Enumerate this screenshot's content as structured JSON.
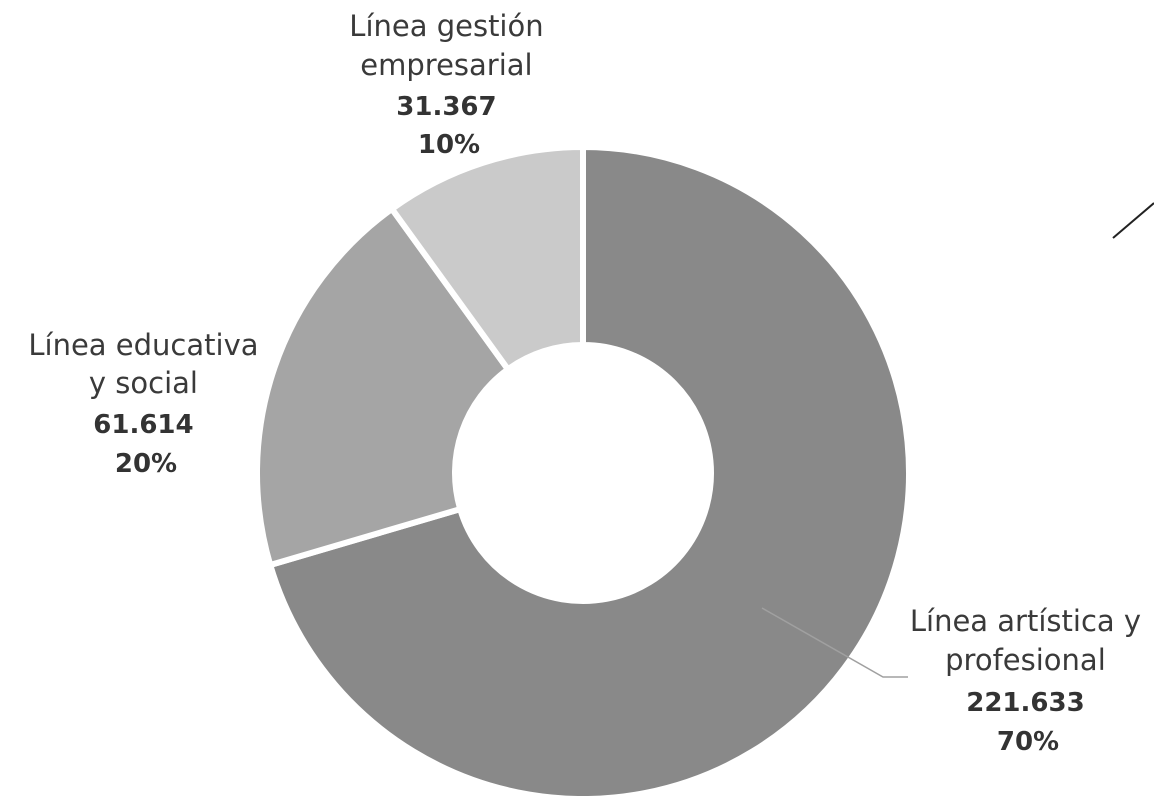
{
  "chart_data": {
    "type": "pie",
    "variant": "donut",
    "direction": "clockwise from 12 o'clock",
    "slices": [
      {
        "name_lines": [
          "Línea artística y",
          "profesional"
        ],
        "value": 221633,
        "value_label": "221.633",
        "percent_label": "70%",
        "color": "#898989"
      },
      {
        "name_lines": [
          "Línea educativa",
          "y social"
        ],
        "value": 61614,
        "value_label": "61.614",
        "percent_label": "20%",
        "color": "#a5a5a5"
      },
      {
        "name_lines": [
          "Línea gestión",
          "empresarial"
        ],
        "value": 31367,
        "value_label": "31.367",
        "percent_label": "10%",
        "color": "#cacaca"
      }
    ],
    "separator_color": "#ffffff",
    "leader_line_color": "#a0a0a0",
    "accent_line_color": "#222222"
  }
}
